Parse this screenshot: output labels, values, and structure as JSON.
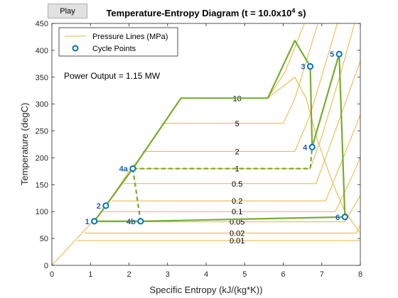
{
  "controls": {
    "play_label": "Play"
  },
  "chart_data": {
    "type": "line",
    "title_main": "Temperature-Entropy Diagram (t = 10.0x10",
    "title_sup": "4",
    "title_end": " s)",
    "xlabel": "Specific Entropy (kJ/(kg*K))",
    "ylabel": "Temperature (degC)",
    "xlim": [
      0,
      8
    ],
    "ylim": [
      0,
      450
    ],
    "xticks": [
      "0",
      "1",
      "2",
      "3",
      "4",
      "5",
      "6",
      "7",
      "8"
    ],
    "yticks": [
      "0",
      "50",
      "100",
      "150",
      "200",
      "250",
      "300",
      "350",
      "400",
      "450"
    ],
    "legend": {
      "placement": "top-left",
      "entries": [
        "Pressure Lines (MPa)",
        "Cycle Points"
      ]
    },
    "annotation": "Power Output = 1.15 MW",
    "colors": {
      "pressure": "#e6b53e",
      "cycle": "#77ac30",
      "points": "#0072bd",
      "point_label": "#1f5fa8"
    },
    "saturation_dome": {
      "liquid": [
        [
          0,
          0
        ],
        [
          1.3,
          100
        ],
        [
          2.0,
          175
        ],
        [
          2.4,
          210
        ],
        [
          3.35,
          311
        ]
      ],
      "vapor": [
        [
          5.6,
          311
        ],
        [
          6.3,
          350
        ],
        [
          6.6,
          310
        ],
        [
          6.9,
          230
        ],
        [
          7.3,
          150
        ],
        [
          7.6,
          100
        ],
        [
          8.0,
          60
        ]
      ]
    },
    "pressure_lines": [
      {
        "label": "10",
        "label_at": [
          4.4,
          311
        ],
        "points": [
          [
            3.35,
            311
          ],
          [
            5.6,
            311
          ],
          [
            6.05,
            360
          ],
          [
            6.55,
            450
          ]
        ]
      },
      {
        "label": "5",
        "label_at": [
          4.4,
          264
        ],
        "points": [
          [
            2.85,
            264
          ],
          [
            6.0,
            264
          ],
          [
            6.3,
            310
          ],
          [
            6.9,
            450
          ]
        ]
      },
      {
        "label": "2",
        "label_at": [
          4.4,
          212
        ],
        "points": [
          [
            2.35,
            212
          ],
          [
            6.3,
            212
          ],
          [
            6.7,
            280
          ],
          [
            7.2,
            400
          ],
          [
            7.4,
            450
          ]
        ]
      },
      {
        "label": "1",
        "label_at": [
          4.4,
          180
        ],
        "points": [
          [
            2.1,
            180
          ],
          [
            6.7,
            180
          ],
          [
            7.0,
            240
          ],
          [
            7.5,
            360
          ],
          [
            7.85,
            450
          ]
        ]
      },
      {
        "label": "0.5",
        "label_at": [
          4.4,
          152
        ],
        "points": [
          [
            1.85,
            152
          ],
          [
            6.85,
            152
          ],
          [
            7.2,
            220
          ],
          [
            7.6,
            300
          ],
          [
            8.0,
            380
          ]
        ]
      },
      {
        "label": "0.2",
        "label_at": [
          4.4,
          120
        ],
        "points": [
          [
            1.55,
            120
          ],
          [
            7.1,
            120
          ],
          [
            7.5,
            190
          ],
          [
            8.0,
            280
          ]
        ]
      },
      {
        "label": "0.1",
        "label_at": [
          4.4,
          100
        ],
        "points": [
          [
            1.3,
            100
          ],
          [
            7.35,
            100
          ],
          [
            7.75,
            160
          ],
          [
            8.0,
            200
          ]
        ]
      },
      {
        "label": "0.05",
        "label_at": [
          4.4,
          81
        ],
        "points": [
          [
            1.1,
            81
          ],
          [
            7.6,
            81
          ],
          [
            8.0,
            130
          ]
        ]
      },
      {
        "label": "0.02",
        "label_at": [
          4.4,
          60
        ],
        "points": [
          [
            0.85,
            60
          ],
          [
            7.9,
            60
          ],
          [
            8.0,
            75
          ]
        ]
      },
      {
        "label": "0.01",
        "label_at": [
          4.4,
          46
        ],
        "points": [
          [
            0.65,
            46
          ],
          [
            8.0,
            46
          ]
        ]
      }
    ],
    "cycle_path_solid": [
      [
        1.1,
        82
      ],
      [
        1.4,
        111
      ],
      [
        2.1,
        180
      ],
      [
        3.35,
        311
      ],
      [
        5.6,
        311
      ],
      [
        6.3,
        418
      ],
      [
        6.7,
        370
      ],
      [
        6.75,
        220
      ],
      [
        7.45,
        393
      ],
      [
        7.6,
        90
      ],
      [
        2.3,
        82
      ],
      [
        1.1,
        82
      ]
    ],
    "cycle_path_dashed": [
      [
        2.1,
        180
      ],
      [
        6.7,
        180
      ],
      [
        6.75,
        220
      ]
    ],
    "cycle_path_dashed2": [
      [
        2.1,
        180
      ],
      [
        2.3,
        82
      ]
    ],
    "cycle_points": [
      {
        "label": "1",
        "s": 1.1,
        "t": 82,
        "side": "left"
      },
      {
        "label": "2",
        "s": 1.4,
        "t": 111,
        "side": "left"
      },
      {
        "label": "4a",
        "s": 2.1,
        "t": 180,
        "side": "left"
      },
      {
        "label": "4b",
        "s": 2.3,
        "t": 82,
        "side": "left"
      },
      {
        "label": "3",
        "s": 6.7,
        "t": 370,
        "side": "left"
      },
      {
        "label": "4",
        "s": 6.75,
        "t": 220,
        "side": "left"
      },
      {
        "label": "5",
        "s": 7.45,
        "t": 393,
        "side": "left"
      },
      {
        "label": "6",
        "s": 7.6,
        "t": 90,
        "side": "left"
      }
    ]
  }
}
